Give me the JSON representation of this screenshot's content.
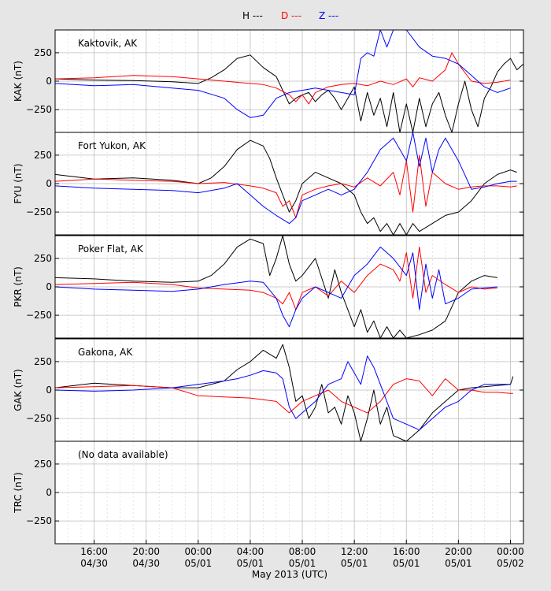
{
  "chart_data": {
    "type": "line",
    "xlabel": "May 2013 (UTC)",
    "legend": {
      "position": "top-center",
      "entries": [
        {
          "label": "H ---",
          "color": "#000000"
        },
        {
          "label": "D ---",
          "color": "#ff0000"
        },
        {
          "label": "Z ---",
          "color": "#0000ff"
        }
      ]
    },
    "x_hours_range": [
      -11,
      25
    ],
    "x_ticks": [
      {
        "h": -8,
        "time": "16:00",
        "date": "04/30"
      },
      {
        "h": -4,
        "time": "20:00",
        "date": "04/30"
      },
      {
        "h": 0,
        "time": "00:00",
        "date": "05/01"
      },
      {
        "h": 4,
        "time": "04:00",
        "date": "05/01"
      },
      {
        "h": 8,
        "time": "08:00",
        "date": "05/01"
      },
      {
        "h": 12,
        "time": "12:00",
        "date": "05/01"
      },
      {
        "h": 16,
        "time": "16:00",
        "date": "05/01"
      },
      {
        "h": 20,
        "time": "20:00",
        "date": "05/01"
      },
      {
        "h": 24,
        "time": "00:00",
        "date": "05/02"
      }
    ],
    "ylim": [
      -450,
      450
    ],
    "y_ticks": [
      250,
      0,
      -250
    ],
    "grid": true,
    "panels": [
      {
        "station": "Kaktovik, AK",
        "ylabel": "KAK (nT)",
        "series": [
          {
            "name": "H",
            "color": "#000000",
            "x": [
              -11,
              -8,
              -5,
              -2,
              0,
              1,
              2,
              3,
              4,
              5,
              6,
              6.5,
              7,
              7.5,
              8,
              8.5,
              9,
              9.5,
              10,
              10.5,
              11,
              11.5,
              12,
              12.5,
              13,
              13.5,
              14,
              14.5,
              15,
              15.5,
              16,
              16.5,
              17,
              17.5,
              18,
              18.5,
              19,
              19.5,
              20,
              20.5,
              21,
              21.5,
              22,
              22.5,
              23,
              23.5,
              24,
              24.5,
              25
            ],
            "y": [
              20,
              10,
              5,
              -5,
              -20,
              30,
              100,
              200,
              230,
              120,
              40,
              -80,
              -200,
              -150,
              -120,
              -100,
              -180,
              -120,
              -80,
              -150,
              -250,
              -150,
              -50,
              -350,
              -100,
              -300,
              -150,
              -400,
              -100,
              -450,
              -200,
              -450,
              -150,
              -400,
              -200,
              -100,
              -300,
              -450,
              -200,
              0,
              -250,
              -400,
              -150,
              -50,
              80,
              150,
              200,
              100,
              150
            ]
          },
          {
            "name": "D",
            "color": "#ff0000",
            "x": [
              -11,
              -8,
              -5,
              -2,
              0,
              2,
              4,
              5,
              6,
              7,
              7.5,
              8,
              8.5,
              9,
              10,
              11,
              12,
              13,
              14,
              15,
              16,
              16.5,
              17,
              18,
              19,
              19.5,
              20,
              21,
              22,
              23,
              24
            ],
            "y": [
              20,
              30,
              50,
              40,
              20,
              0,
              -20,
              -30,
              -60,
              -120,
              -180,
              -120,
              -200,
              -100,
              -50,
              -30,
              -20,
              -40,
              0,
              -30,
              20,
              -50,
              30,
              0,
              100,
              250,
              150,
              0,
              -20,
              -10,
              10
            ]
          },
          {
            "name": "Z",
            "color": "#0000ff",
            "x": [
              -11,
              -8,
              -5,
              -2,
              0,
              2,
              3,
              4,
              5,
              6,
              7,
              8,
              9,
              10,
              11,
              12,
              12.5,
              13,
              13.5,
              14,
              14.5,
              15,
              16,
              17,
              18,
              19,
              20,
              21,
              22,
              23,
              23.5,
              24
            ],
            "y": [
              -20,
              -40,
              -30,
              -60,
              -80,
              -150,
              -250,
              -320,
              -300,
              -150,
              -100,
              -80,
              -60,
              -80,
              -100,
              -120,
              200,
              250,
              220,
              450,
              300,
              480,
              450,
              300,
              220,
              200,
              150,
              50,
              -50,
              -100,
              -80,
              -60
            ]
          }
        ]
      },
      {
        "station": "Fort Yukon, AK",
        "ylabel": "FYU (nT)",
        "series": [
          {
            "name": "H",
            "color": "#000000",
            "x": [
              -11,
              -8,
              -5,
              -2,
              0,
              1,
              2,
              3,
              4,
              5,
              5.5,
              6,
              6.5,
              7,
              7.5,
              8,
              9,
              10,
              11,
              12,
              12.5,
              13,
              13.5,
              14,
              14.5,
              15,
              15.5,
              16,
              16.5,
              17,
              18,
              19,
              20,
              21,
              22,
              23,
              24,
              24.5
            ],
            "y": [
              80,
              40,
              50,
              30,
              0,
              50,
              150,
              300,
              380,
              330,
              220,
              50,
              -100,
              -250,
              -150,
              0,
              100,
              50,
              0,
              -100,
              -250,
              -350,
              -300,
              -420,
              -350,
              -450,
              -350,
              -450,
              -350,
              -420,
              -350,
              -280,
              -250,
              -150,
              0,
              80,
              120,
              100
            ]
          },
          {
            "name": "D",
            "color": "#ff0000",
            "x": [
              -11,
              -8,
              -5,
              -2,
              0,
              2,
              4,
              5,
              6,
              6.5,
              7,
              7.5,
              8,
              9,
              10,
              11,
              12,
              13,
              14,
              15,
              15.5,
              16,
              16.5,
              17,
              17.5,
              18,
              19,
              20,
              21,
              22,
              23,
              24,
              24.5
            ],
            "y": [
              20,
              40,
              30,
              20,
              0,
              10,
              -20,
              -40,
              -80,
              -200,
              -150,
              -300,
              -100,
              -50,
              -20,
              0,
              -30,
              50,
              -20,
              100,
              -100,
              200,
              -250,
              250,
              -200,
              100,
              0,
              -50,
              -30,
              -20,
              -20,
              -30,
              -20
            ]
          },
          {
            "name": "Z",
            "color": "#0000ff",
            "x": [
              -11,
              -8,
              -5,
              -2,
              0,
              2,
              3,
              4,
              5,
              6,
              7,
              7.5,
              8,
              9,
              10,
              11,
              12,
              13,
              14,
              15,
              16,
              16.5,
              17,
              17.5,
              18,
              18.5,
              19,
              20,
              21,
              22,
              23,
              24,
              24.5
            ],
            "y": [
              -20,
              -40,
              -50,
              -60,
              -80,
              -40,
              0,
              -100,
              -200,
              -280,
              -350,
              -300,
              -150,
              -100,
              -50,
              -100,
              -50,
              100,
              300,
              400,
              200,
              450,
              150,
              400,
              100,
              300,
              400,
              200,
              -50,
              -30,
              0,
              20,
              20
            ]
          }
        ]
      },
      {
        "station": "Poker Flat, AK",
        "ylabel": "PKR (nT)",
        "series": [
          {
            "name": "H",
            "color": "#000000",
            "x": [
              -11,
              -8,
              -5,
              -2,
              0,
              1,
              2,
              3,
              4,
              5,
              5.5,
              6,
              6.5,
              7,
              7.5,
              8,
              9,
              10,
              10.5,
              11,
              11.5,
              12,
              12.5,
              13,
              13.5,
              14,
              14.5,
              15,
              15.5,
              16,
              17,
              18,
              19,
              20,
              21,
              22,
              23
            ],
            "y": [
              80,
              70,
              50,
              40,
              50,
              100,
              200,
              350,
              420,
              380,
              100,
              250,
              450,
              200,
              50,
              100,
              250,
              -100,
              150,
              -50,
              -200,
              -350,
              -200,
              -400,
              -300,
              -450,
              -350,
              -450,
              -380,
              -450,
              -420,
              -380,
              -300,
              -50,
              50,
              100,
              80
            ]
          },
          {
            "name": "D",
            "color": "#ff0000",
            "x": [
              -11,
              -8,
              -5,
              -2,
              0,
              2,
              4,
              5,
              6,
              6.5,
              7,
              7.5,
              8,
              9,
              10,
              11,
              12,
              13,
              14,
              15,
              15.5,
              16,
              16.5,
              17,
              17.5,
              18,
              19,
              20,
              21,
              22,
              23
            ],
            "y": [
              20,
              30,
              40,
              20,
              -10,
              -20,
              -30,
              -50,
              -100,
              -150,
              -50,
              -200,
              -50,
              0,
              -80,
              50,
              -50,
              100,
              200,
              150,
              50,
              300,
              -100,
              350,
              -50,
              100,
              20,
              -50,
              0,
              -20,
              -10
            ]
          },
          {
            "name": "Z",
            "color": "#0000ff",
            "x": [
              -11,
              -8,
              -5,
              -2,
              0,
              2,
              4,
              5,
              6,
              6.5,
              7,
              7.5,
              8,
              9,
              10,
              11,
              12,
              13,
              14,
              15,
              16,
              16.5,
              17,
              17.5,
              18,
              18.5,
              19,
              20,
              21,
              22,
              23
            ],
            "y": [
              0,
              -20,
              -30,
              -40,
              -20,
              20,
              50,
              40,
              -100,
              -250,
              -350,
              -200,
              -100,
              0,
              -50,
              -100,
              100,
              200,
              350,
              250,
              100,
              300,
              -200,
              200,
              -100,
              150,
              -150,
              -100,
              -20,
              -10,
              0
            ]
          }
        ]
      },
      {
        "station": "Gakona, AK",
        "ylabel": "GAK (nT)",
        "series": [
          {
            "name": "H",
            "color": "#000000",
            "x": [
              -11,
              -8,
              -5,
              -2,
              0,
              2,
              3,
              4,
              5,
              6,
              6.5,
              7,
              7.5,
              8,
              8.5,
              9,
              9.5,
              10,
              10.5,
              11,
              11.5,
              12,
              12.5,
              13,
              13.5,
              14,
              14.5,
              15,
              16,
              17,
              18,
              19,
              20,
              21,
              22,
              23,
              24,
              24.2
            ],
            "y": [
              20,
              60,
              40,
              20,
              20,
              80,
              180,
              250,
              350,
              280,
              400,
              200,
              -100,
              -50,
              -250,
              -150,
              50,
              -200,
              -150,
              -300,
              -50,
              -200,
              -450,
              -250,
              0,
              -300,
              -150,
              -400,
              -450,
              -350,
              -200,
              -100,
              0,
              20,
              30,
              40,
              50,
              120
            ]
          },
          {
            "name": "D",
            "color": "#ff0000",
            "x": [
              -11,
              -8,
              -5,
              -2,
              0,
              2,
              4,
              6,
              6.5,
              7,
              8,
              9,
              10,
              11,
              12,
              13,
              14,
              15,
              16,
              17,
              18,
              19,
              20,
              21,
              22,
              23,
              24,
              24.2
            ],
            "y": [
              20,
              30,
              40,
              20,
              -50,
              -60,
              -70,
              -100,
              -150,
              -200,
              -100,
              -50,
              0,
              -100,
              -150,
              -200,
              -100,
              50,
              100,
              80,
              -50,
              100,
              0,
              0,
              -20,
              -20,
              -30,
              -30
            ]
          },
          {
            "name": "Z",
            "color": "#0000ff",
            "x": [
              -11,
              -8,
              -5,
              -2,
              0,
              2,
              3,
              4,
              5,
              6,
              6.5,
              7,
              7.5,
              8,
              9,
              10,
              11,
              11.5,
              12,
              12.5,
              13,
              13.5,
              14,
              15,
              16,
              17,
              18,
              19,
              20,
              21,
              22,
              23,
              24
            ],
            "y": [
              0,
              -10,
              0,
              20,
              50,
              80,
              100,
              130,
              170,
              150,
              100,
              -150,
              -250,
              -200,
              -100,
              50,
              100,
              250,
              150,
              50,
              300,
              200,
              50,
              -250,
              -300,
              -350,
              -250,
              -150,
              -100,
              0,
              50,
              50,
              50
            ]
          }
        ]
      },
      {
        "station": "(No data available)",
        "ylabel": "TRC (nT)",
        "series": []
      }
    ]
  }
}
